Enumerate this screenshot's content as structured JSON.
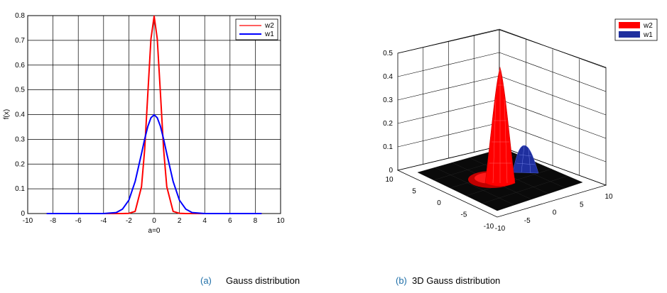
{
  "captions": {
    "a_tag": "(a)",
    "a_text": "Gauss distribution",
    "b_tag": "(b)",
    "b_text": "3D Gauss distribution"
  },
  "chart_data": [
    {
      "type": "line",
      "xlabel": "a=0",
      "ylabel": "f(x)",
      "xlim": [
        -10,
        10
      ],
      "ylim": [
        0,
        0.8
      ],
      "xticks": [
        -10,
        -8,
        -6,
        -4,
        -2,
        0,
        2,
        4,
        6,
        8,
        10
      ],
      "yticks": [
        0,
        0.1,
        0.2,
        0.3,
        0.4,
        0.5,
        0.6,
        0.7,
        0.8
      ],
      "grid": true,
      "legend": "top-right",
      "x": [
        -8.5,
        -4,
        -3,
        -2.5,
        -2,
        -1.5,
        -1,
        -0.75,
        -0.5,
        -0.25,
        0,
        0.25,
        0.5,
        0.75,
        1,
        1.5,
        2,
        2.5,
        3,
        4,
        8.5
      ],
      "series": [
        {
          "name": "w2",
          "color": "#ff0000",
          "values": [
            0,
            0,
            0,
            0,
            0.001,
            0.009,
            0.108,
            0.26,
            0.484,
            0.706,
            0.798,
            0.706,
            0.484,
            0.26,
            0.108,
            0.009,
            0.001,
            0,
            0,
            0,
            0
          ]
        },
        {
          "name": "w1",
          "color": "#0000ff",
          "values": [
            0,
            0,
            0.004,
            0.018,
            0.054,
            0.13,
            0.242,
            0.301,
            0.352,
            0.387,
            0.399,
            0.387,
            0.352,
            0.301,
            0.242,
            0.13,
            0.054,
            0.018,
            0.004,
            0,
            0
          ]
        }
      ]
    },
    {
      "type": "surface3d",
      "xlim": [
        -10,
        10
      ],
      "ylim": [
        -10,
        10
      ],
      "zlim": [
        0,
        0.5
      ],
      "xticks": [
        -10,
        -5,
        0,
        5,
        10
      ],
      "yticks": [
        -10,
        -5,
        0,
        5,
        10
      ],
      "zticks": [
        0,
        0.1,
        0.2,
        0.3,
        0.4,
        0.5
      ],
      "grid": true,
      "legend": "top-right",
      "series": [
        {
          "name": "w2",
          "color": "#ff0000",
          "peak": 0.44
        },
        {
          "name": "w1",
          "color": "#1f2f9e",
          "peak": 0.09
        }
      ]
    }
  ]
}
